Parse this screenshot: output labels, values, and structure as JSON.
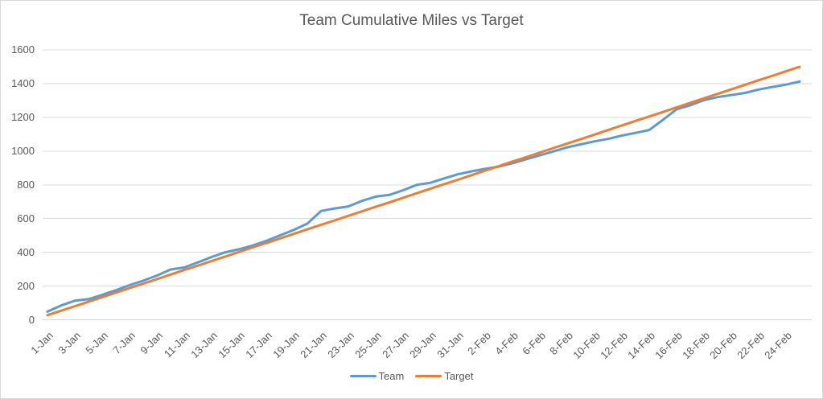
{
  "window": {
    "background": "#FFFFFF",
    "border_color": "#D9D9D9"
  },
  "chart_data": {
    "type": "line",
    "title": "Team Cumulative Miles vs Target",
    "title_color": "#595959",
    "axis_text_color": "#595959",
    "gridline_color": "#D9D9D9",
    "grid": true,
    "legend_position": "bottom",
    "xlabel": "",
    "ylabel": "",
    "ylim": [
      0,
      1600
    ],
    "ytick_step": 200,
    "y_ticks": [
      "0",
      "200",
      "400",
      "600",
      "800",
      "1000",
      "1200",
      "1400",
      "1600"
    ],
    "x": [
      "1-Jan",
      "2-Jan",
      "3-Jan",
      "4-Jan",
      "5-Jan",
      "6-Jan",
      "7-Jan",
      "8-Jan",
      "9-Jan",
      "10-Jan",
      "11-Jan",
      "12-Jan",
      "13-Jan",
      "14-Jan",
      "15-Jan",
      "16-Jan",
      "17-Jan",
      "18-Jan",
      "19-Jan",
      "20-Jan",
      "21-Jan",
      "22-Jan",
      "23-Jan",
      "24-Jan",
      "25-Jan",
      "26-Jan",
      "27-Jan",
      "28-Jan",
      "29-Jan",
      "30-Jan",
      "31-Jan",
      "1-Feb",
      "2-Feb",
      "3-Feb",
      "4-Feb",
      "5-Feb",
      "6-Feb",
      "7-Feb",
      "8-Feb",
      "9-Feb",
      "10-Feb",
      "11-Feb",
      "12-Feb",
      "13-Feb",
      "14-Feb",
      "15-Feb",
      "16-Feb",
      "17-Feb",
      "18-Feb",
      "19-Feb",
      "20-Feb",
      "21-Feb",
      "22-Feb",
      "23-Feb",
      "24-Feb",
      "25-Feb"
    ],
    "x_tick_labels": [
      "1-Jan",
      "3-Jan",
      "5-Jan",
      "7-Jan",
      "9-Jan",
      "11-Jan",
      "13-Jan",
      "15-Jan",
      "17-Jan",
      "19-Jan",
      "21-Jan",
      "23-Jan",
      "25-Jan",
      "27-Jan",
      "29-Jan",
      "31-Jan",
      "2-Feb",
      "4-Feb",
      "6-Feb",
      "8-Feb",
      "10-Feb",
      "12-Feb",
      "14-Feb",
      "16-Feb",
      "18-Feb",
      "20-Feb",
      "22-Feb",
      "24-Feb"
    ],
    "x_tick_every": 2,
    "series": [
      {
        "name": "Team",
        "color": "#5B9BD5",
        "values": [
          48,
          85,
          113,
          122,
          148,
          175,
          205,
          232,
          262,
          298,
          310,
          340,
          372,
          400,
          418,
          440,
          468,
          500,
          532,
          570,
          645,
          660,
          672,
          705,
          730,
          740,
          768,
          800,
          812,
          838,
          862,
          880,
          895,
          908,
          928,
          952,
          975,
          998,
          1022,
          1040,
          1058,
          1072,
          1092,
          1108,
          1125,
          1185,
          1248,
          1272,
          1302,
          1320,
          1332,
          1345,
          1365,
          1380,
          1394,
          1412
        ]
      },
      {
        "name": "Target",
        "color": "#ED7D31",
        "values": [
          27,
          54,
          80,
          107,
          134,
          161,
          188,
          214,
          241,
          268,
          295,
          321,
          348,
          375,
          402,
          429,
          455,
          482,
          509,
          536,
          563,
          589,
          616,
          643,
          670,
          696,
          723,
          750,
          777,
          804,
          830,
          857,
          884,
          911,
          938,
          964,
          991,
          1018,
          1045,
          1071,
          1098,
          1125,
          1152,
          1179,
          1205,
          1232,
          1259,
          1286,
          1313,
          1339,
          1366,
          1393,
          1420,
          1446,
          1473,
          1500
        ]
      }
    ]
  }
}
